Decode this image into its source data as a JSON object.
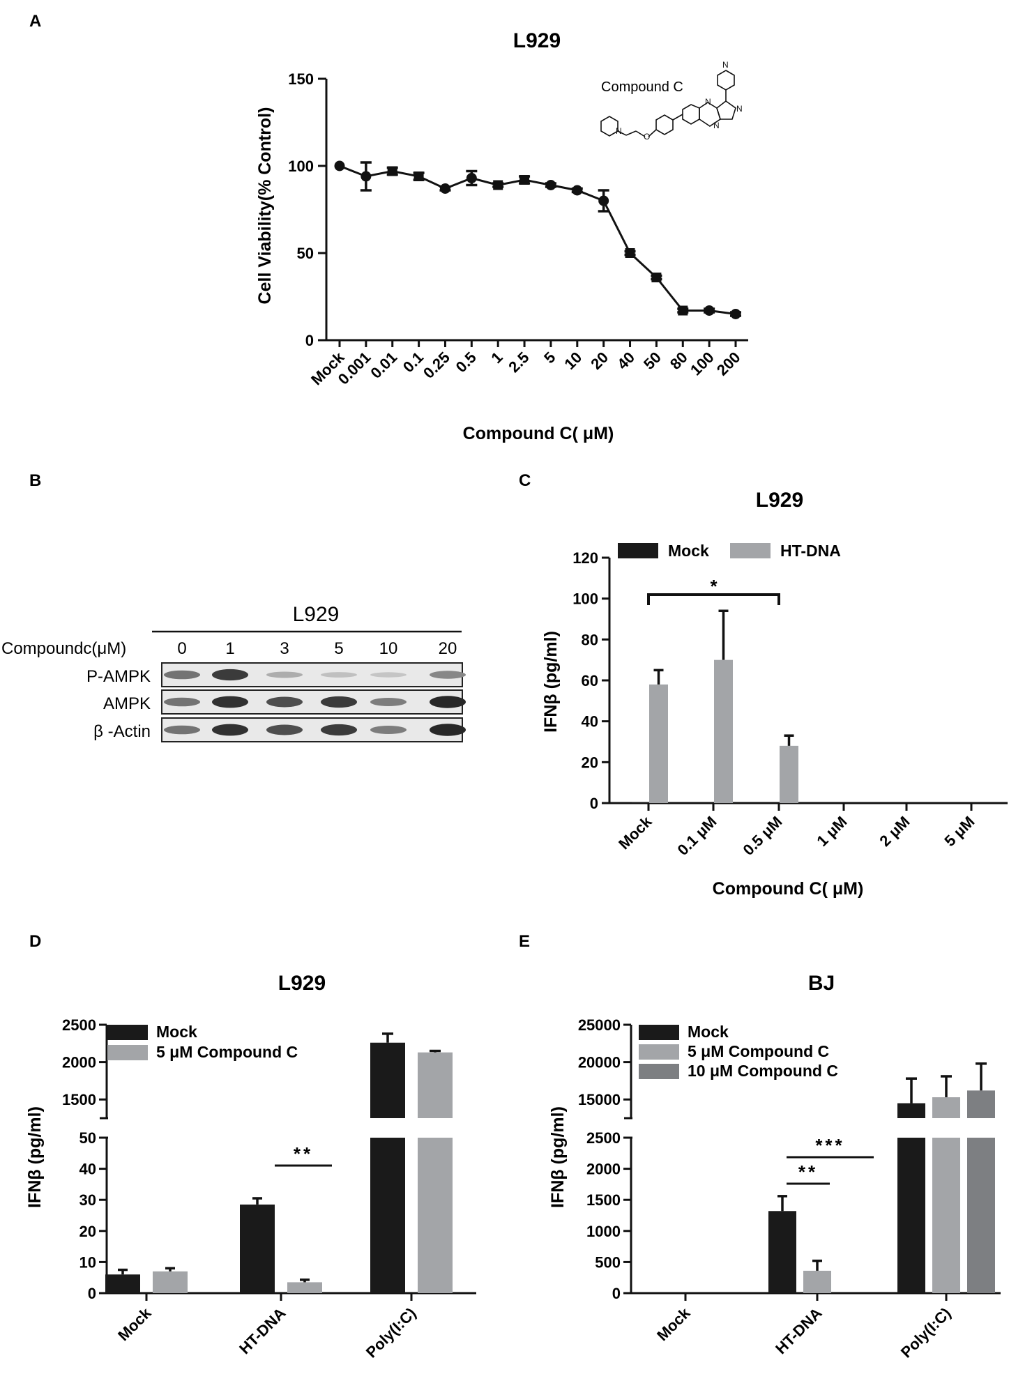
{
  "panels": {
    "A": {
      "label": "A",
      "title": "L929",
      "ylabel": "Cell Viability(% Control)",
      "xlabel": "Compound C( μM)",
      "structure_label": "Compound  C",
      "structure_atoms": [
        "N",
        "N",
        "N",
        "N",
        "N",
        "O"
      ]
    },
    "B": {
      "label": "B",
      "blot_title": "L929",
      "treatment_label": "Compoundc(μM)",
      "lanes": [
        "0",
        "1",
        "3",
        "5",
        "10",
        "20"
      ],
      "rows": [
        "P-AMPK",
        "AMPK",
        "β -Actin"
      ],
      "band_intensity": {
        "P-AMPK": [
          0.55,
          0.85,
          0.25,
          0.15,
          0.12,
          0.45
        ],
        "AMPK": [
          0.55,
          0.9,
          0.75,
          0.85,
          0.5,
          0.95
        ],
        "β -Actin": [
          0.55,
          0.9,
          0.75,
          0.85,
          0.5,
          0.95
        ]
      }
    },
    "C": {
      "label": "C",
      "significance": "*"
    },
    "D": {
      "label": "D",
      "significance": "**"
    },
    "E": {
      "label": "E",
      "significance_1": "**",
      "significance_2": "***"
    }
  },
  "colors": {
    "mock_bar": "#1a1a1a",
    "compound5_bar": "#a3a5a8",
    "compound10_bar": "#7d7f82",
    "line": "#111111"
  },
  "chart_data": [
    {
      "panel": "A",
      "type": "line",
      "title": "L929",
      "xlabel": "Compound C( μM)",
      "ylabel": "Cell Viability(% Control)",
      "categories": [
        "Mock",
        "0.001",
        "0.01",
        "0.1",
        "0.25",
        "0.5",
        "1",
        "2.5",
        "5",
        "10",
        "20",
        "40",
        "50",
        "80",
        "100",
        "200"
      ],
      "values": [
        100,
        94,
        97,
        94,
        87,
        93,
        89,
        92,
        89,
        86,
        80,
        50,
        36,
        17,
        17,
        15
      ],
      "errors": [
        0,
        8,
        2,
        2,
        1,
        4,
        1,
        2,
        1,
        1,
        6,
        1,
        1,
        1,
        1,
        1
      ],
      "markers": [
        "circle",
        "circle",
        "square",
        "square",
        "circle",
        "circle",
        "square",
        "square",
        "circle",
        "circle",
        "circle",
        "square",
        "square",
        "square",
        "circle",
        "circle"
      ],
      "yticks": [
        0,
        50,
        100,
        150
      ],
      "ylim": [
        0,
        150
      ],
      "grid": false
    },
    {
      "panel": "C",
      "type": "bar",
      "title": "L929",
      "xlabel": "Compound C( μM)",
      "ylabel": "IFNβ (pg/ml)",
      "categories": [
        "Mock",
        "0.1 μM",
        "0.5 μM",
        "1 μM",
        "2 μM",
        "5 μM"
      ],
      "series": [
        {
          "name": "Mock",
          "values": [
            0.5,
            0,
            0,
            0,
            0,
            0
          ],
          "errors": [
            0,
            0,
            0,
            0,
            0,
            0
          ]
        },
        {
          "name": "HT-DNA",
          "values": [
            58,
            70,
            28,
            0,
            0,
            0
          ],
          "errors": [
            7,
            24,
            5,
            0,
            0,
            0
          ]
        }
      ],
      "yticks": [
        0,
        20,
        40,
        60,
        80,
        100,
        120
      ],
      "ylim": [
        0,
        120
      ],
      "legend_position": "top-left"
    },
    {
      "panel": "D",
      "type": "bar",
      "title": "L929",
      "xlabel": "",
      "ylabel": "IFNβ (pg/ml)",
      "categories": [
        "Mock",
        "HT-DNA",
        "Poly(I:C)"
      ],
      "series": [
        {
          "name": "Mock",
          "values": [
            6,
            28.5,
            2260
          ],
          "errors": [
            1.5,
            2,
            120
          ]
        },
        {
          "name": "5 μM Compound C",
          "values": [
            7,
            3.5,
            2130
          ],
          "errors": [
            1,
            0.8,
            20
          ]
        }
      ],
      "axis_break": {
        "lower_ylim": [
          0,
          50
        ],
        "upper_ylim": [
          1250,
          2500
        ]
      },
      "yticks_lower": [
        0,
        10,
        20,
        30,
        40,
        50
      ],
      "yticks_upper": [
        1500,
        2000,
        2500
      ],
      "legend_position": "top-left"
    },
    {
      "panel": "E",
      "type": "bar",
      "title": "BJ",
      "xlabel": "",
      "ylabel": "IFNβ (pg/ml)",
      "categories": [
        "Mock",
        "HT-DNA",
        "Poly(I:C)"
      ],
      "series": [
        {
          "name": "Mock",
          "values": [
            0,
            1320,
            14500
          ],
          "errors": [
            0,
            240,
            3300
          ]
        },
        {
          "name": "5 μM Compound C",
          "values": [
            0,
            360,
            15300
          ],
          "errors": [
            0,
            160,
            2800
          ]
        },
        {
          "name": "10 μM Compound C",
          "values": [
            0,
            0,
            16200
          ],
          "errors": [
            0,
            0,
            3600
          ]
        }
      ],
      "axis_break": {
        "lower_ylim": [
          0,
          2500
        ],
        "upper_ylim": [
          12500,
          25000
        ]
      },
      "yticks_lower": [
        0,
        500,
        1000,
        1500,
        2000,
        2500
      ],
      "yticks_upper": [
        15000,
        20000,
        25000
      ],
      "legend_position": "top-left"
    }
  ]
}
